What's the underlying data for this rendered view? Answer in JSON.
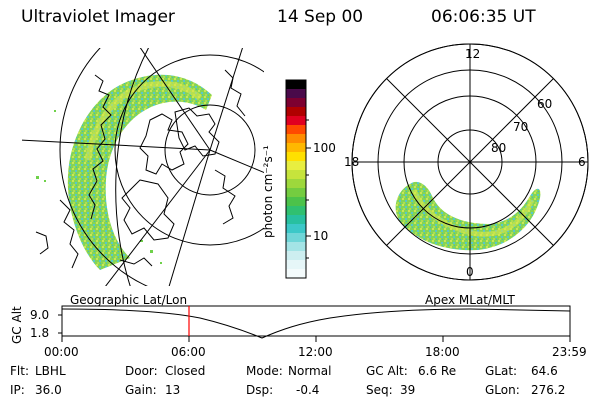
{
  "header": {
    "instrument": "Ultraviolet Imager",
    "date": "14 Sep 00",
    "time": "06:06:35 UT"
  },
  "colorbar": {
    "unit_label": "photon cm⁻²s⁻¹",
    "ticks": [
      "100",
      "10"
    ]
  },
  "polar_plot": {
    "mlt_labels": {
      "top": "12",
      "left": "18",
      "right": "6",
      "bottom": "0"
    },
    "mlat_labels": [
      "60",
      "70",
      "80"
    ]
  },
  "timeline": {
    "left_label": "Geographic Lat/Lon",
    "right_label": "Apex MLat/MLT",
    "axis_title": "GC Alt",
    "y_ticks": [
      "9.0",
      "1.8"
    ],
    "x_ticks": [
      "00:00",
      "06:00",
      "12:00",
      "18:00",
      "23:59"
    ],
    "marker_color": "#ff0000"
  },
  "info": {
    "row1": [
      {
        "key": "Flt:",
        "value": "LBHL"
      },
      {
        "key": "Door:",
        "value": "Closed"
      },
      {
        "key": "Mode:",
        "value": "Normal"
      },
      {
        "key": "GC Alt:",
        "value": "6.6 Re"
      },
      {
        "key": "GLat:",
        "value": "64.6"
      }
    ],
    "row2": [
      {
        "key": "IP:",
        "value": "36.0"
      },
      {
        "key": "Gain:",
        "value": "13"
      },
      {
        "key": "Dsp:",
        "value": "-0.4"
      },
      {
        "key": "Seq:",
        "value": "39"
      },
      {
        "key": "GLon:",
        "value": "276.2"
      }
    ]
  }
}
